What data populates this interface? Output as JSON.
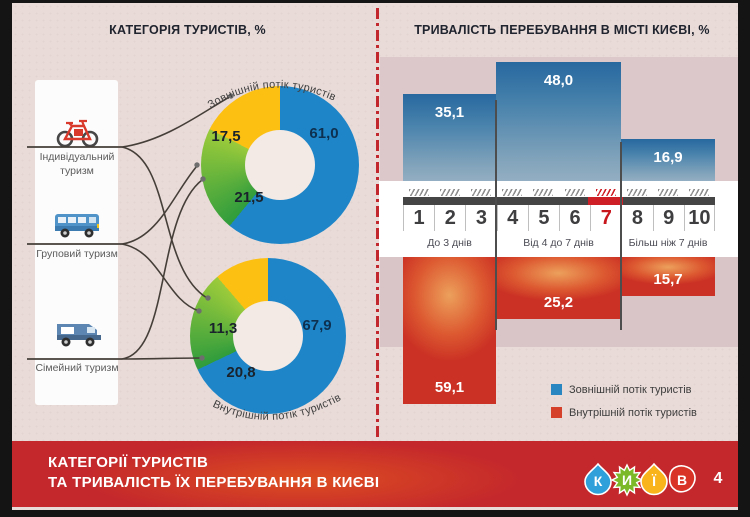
{
  "page_number": "4",
  "left_panel": {
    "title": "КАТЕГОРІЯ ТУРИСТІВ, %",
    "categories": [
      {
        "label": "Індивідуальний туризм",
        "icon": "bicycle-icon"
      },
      {
        "label": "Груповий туризм",
        "icon": "bus-icon"
      },
      {
        "label": "Сімейний туризм",
        "icon": "camper-icon"
      }
    ]
  },
  "right_panel": {
    "title": "ТРИВАЛІСТЬ ПЕРЕБУВАННЯ В МІСТІ КИЄВІ, %"
  },
  "banner": {
    "line1": "КАТЕГОРІЇ ТУРИСТІВ",
    "line2": "ТА ТРИВАЛІСТЬ ЇХ ПЕРЕБУВАННЯ В КИЄВІ"
  },
  "logo": {
    "letters": [
      {
        "char": "К",
        "color": "#2fa0d9"
      },
      {
        "char": "И",
        "color": "#7cb928"
      },
      {
        "char": "Ї",
        "color": "#f9b31b"
      },
      {
        "char": "В",
        "color": "#d93327"
      }
    ]
  },
  "chart_data": [
    {
      "type": "pie",
      "subtype": "donut",
      "name": "external-tourist-flow-by-category",
      "curved_title": "Зовнішній потік туристів",
      "start_angle": "top, clockwise",
      "segments": [
        {
          "value": 61.0,
          "display": "61,0",
          "color": "#1e86c8"
        },
        {
          "value": 21.5,
          "display": "21,5",
          "color": "#2f9c3c",
          "color2": "#9ccb3b"
        },
        {
          "value": 17.5,
          "display": "17,5",
          "color": "#fcc013"
        }
      ]
    },
    {
      "type": "pie",
      "subtype": "donut",
      "name": "internal-tourist-flow-by-category",
      "curved_title": "Внутрішній потік туристів",
      "start_angle": "top, clockwise",
      "segments": [
        {
          "value": 67.9,
          "display": "67,9",
          "color": "#1e86c8"
        },
        {
          "value": 20.8,
          "display": "20,8",
          "color": "#2f9c3c",
          "color2": "#9ccb3b"
        },
        {
          "value": 11.3,
          "display": "11,3",
          "color": "#fcc013"
        }
      ]
    },
    {
      "type": "bar",
      "name": "duration-of-stay",
      "categories": [
        "До 3 днів",
        "Від 4 до 7 днів",
        "Більш ніж 7 днів"
      ],
      "series": [
        {
          "name": "Зовнішній потік туристів",
          "color": "#2a86c0",
          "direction": "up",
          "values": [
            35.1,
            48.0,
            16.9
          ],
          "display": [
            "35,1",
            "48,0",
            "16,9"
          ]
        },
        {
          "name": "Внутрішній потік туристів",
          "color": "#d5402b",
          "direction": "down",
          "values": [
            59.1,
            25.2,
            15.7
          ],
          "display": [
            "59,1",
            "25,2",
            "15,7"
          ]
        }
      ],
      "scale_numbers": [
        "1",
        "2",
        "3",
        "4",
        "5",
        "6",
        "7",
        "8",
        "9",
        "10"
      ],
      "highlighted_number": "7",
      "legend_position": "bottom-right"
    }
  ]
}
